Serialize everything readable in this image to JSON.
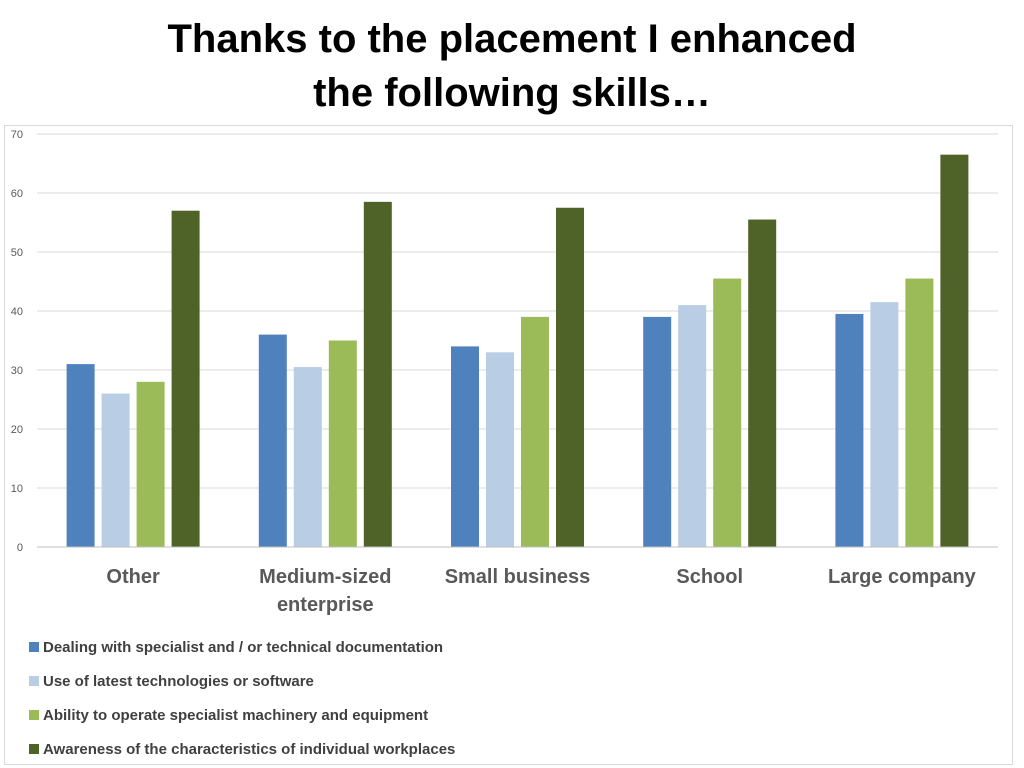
{
  "title_lines": [
    "Thanks to the placement I enhanced",
    "the following skills…"
  ],
  "colors": {
    "series": [
      "#4f81bd",
      "#b9cde5",
      "#9bbb59",
      "#4f6228"
    ],
    "grid": "#d9d9d9",
    "axis_text": "#595959",
    "category_text": "#595959"
  },
  "chart_data": {
    "type": "bar",
    "title": "Thanks to the placement I enhanced the following skills…",
    "xlabel": "",
    "ylabel": "",
    "ylim": [
      0,
      70
    ],
    "yticks": [
      0,
      10,
      20,
      30,
      40,
      50,
      60,
      70
    ],
    "grid": true,
    "legend_position": "bottom-left",
    "categories": [
      [
        "Other"
      ],
      [
        "Medium-sized",
        "enterprise"
      ],
      [
        "Small business"
      ],
      [
        "School"
      ],
      [
        "Large company"
      ]
    ],
    "series": [
      {
        "name": "Dealing with specialist and / or technical documentation",
        "values": [
          31,
          36,
          34,
          39,
          39.5
        ]
      },
      {
        "name": "Use of latest technologies or software",
        "values": [
          26,
          30.5,
          33,
          41,
          41.5
        ]
      },
      {
        "name": "Ability to operate specialist machinery and equipment",
        "values": [
          28,
          35,
          39,
          45.5,
          45.5
        ]
      },
      {
        "name": "Awareness of the characteristics of individual workplaces",
        "values": [
          57,
          58.5,
          57.5,
          55.5,
          66.5
        ]
      }
    ]
  }
}
